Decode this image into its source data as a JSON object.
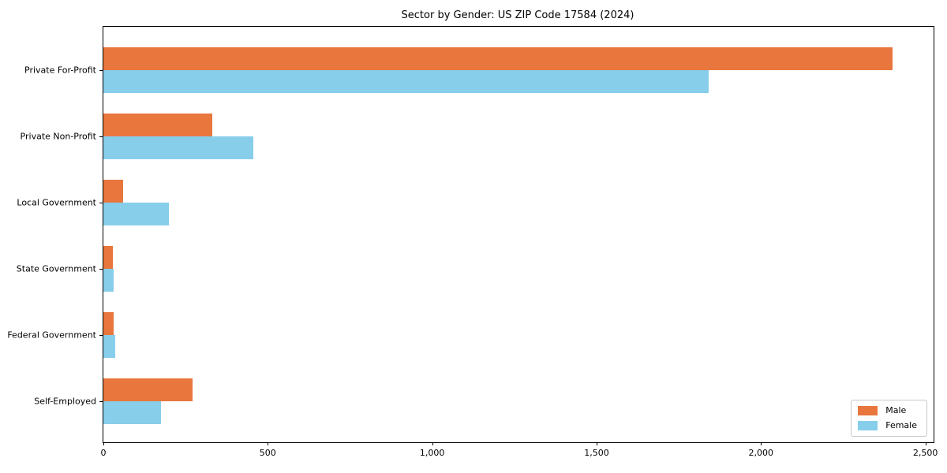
{
  "chart_data": {
    "type": "bar",
    "orientation": "horizontal",
    "title": "Sector by Gender: US ZIP Code 17584 (2024)",
    "xlabel": "",
    "ylabel": "",
    "categories": [
      "Private For-Profit",
      "Private Non-Profit",
      "Local Government",
      "State Government",
      "Federal Government",
      "Self-Employed"
    ],
    "series": [
      {
        "name": "Male",
        "color": "#e8763d",
        "values": [
          2400,
          330,
          60,
          28,
          32,
          270
        ]
      },
      {
        "name": "Female",
        "color": "#87ceeb",
        "values": [
          1840,
          455,
          200,
          30,
          35,
          175
        ]
      }
    ],
    "xlim": [
      0,
      2525
    ],
    "xticks": [
      0,
      500,
      1000,
      1500,
      2000,
      2500
    ],
    "xtick_labels": [
      "0",
      "500",
      "1,000",
      "1,500",
      "2,000",
      "2,500"
    ],
    "grid": false,
    "legend_position": "lower right"
  }
}
